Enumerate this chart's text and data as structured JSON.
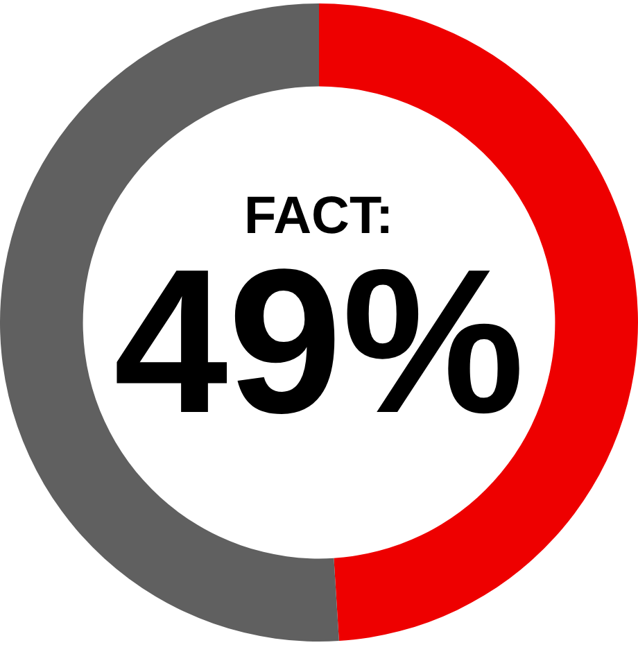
{
  "chart_data": {
    "type": "donut",
    "title": "FACT:",
    "annotations": [
      "49%"
    ],
    "categories": [
      null,
      null
    ],
    "values": [
      49,
      51
    ],
    "colors": [
      "#ee0000",
      "#606060"
    ]
  }
}
